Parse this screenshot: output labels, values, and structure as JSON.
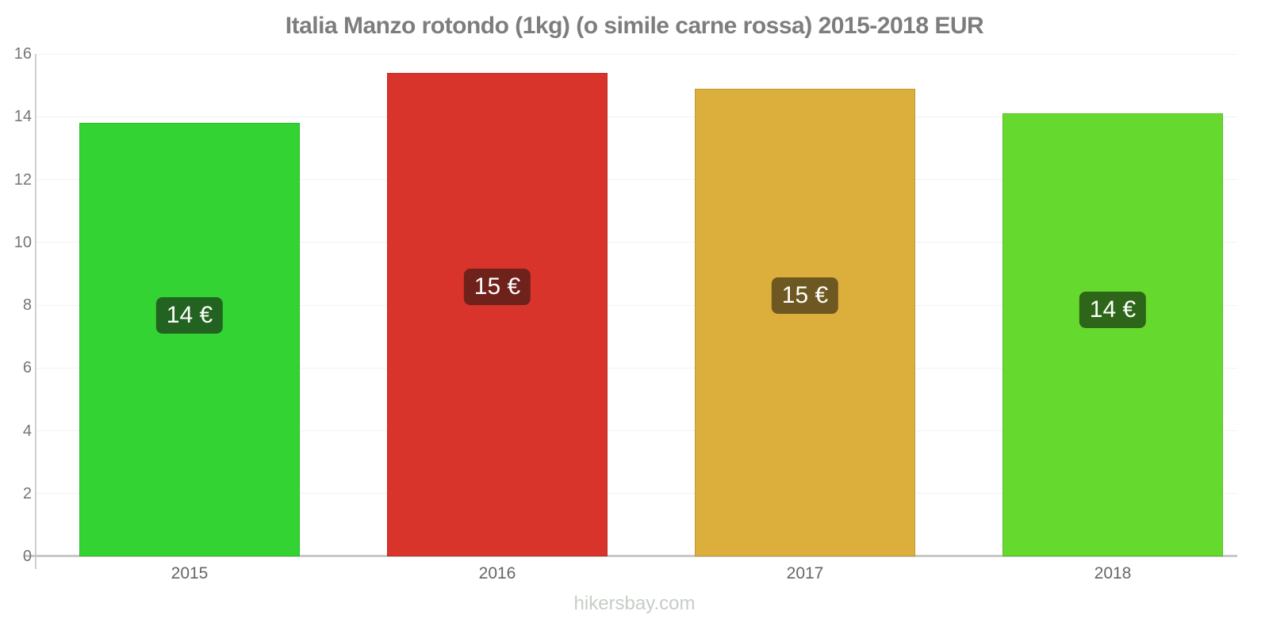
{
  "title": "Italia Manzo rotondo (1kg) (o simile carne rossa) 2015-2018 EUR",
  "watermark": "hikersbay.com",
  "chart_data": {
    "type": "bar",
    "title": "Italia Manzo rotondo (1kg) (o simile carne rossa) 2015-2018 EUR",
    "categories": [
      "2015",
      "2016",
      "2017",
      "2018"
    ],
    "values": [
      13.8,
      15.4,
      14.9,
      14.1
    ],
    "bar_labels": [
      "14 €",
      "15 €",
      "15 €",
      "14 €"
    ],
    "bar_colors": [
      "#33d333",
      "#d9342c",
      "#dcaf3c",
      "#66d92e"
    ],
    "badge_colors": [
      "#236321",
      "#6f211b",
      "#6e5822",
      "#2d6618"
    ],
    "xlabel": "",
    "ylabel": "",
    "ylim": [
      0,
      16
    ],
    "yticks": [
      0,
      2,
      4,
      6,
      8,
      10,
      12,
      14,
      16
    ],
    "grid": true,
    "legend": false,
    "currency": "EUR"
  }
}
